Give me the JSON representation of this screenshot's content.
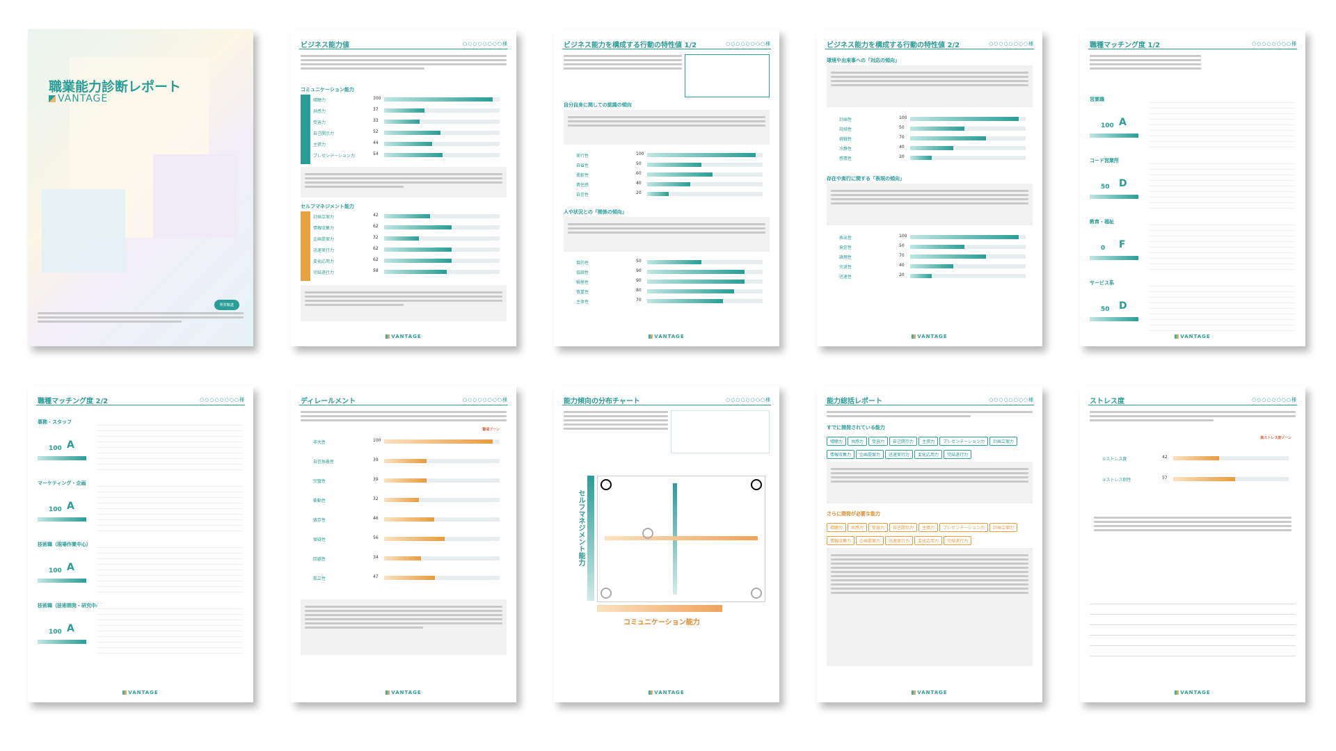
{
  "brand": "VANTAGE",
  "page_number": "○○○○○○○○様",
  "cover": {
    "title": "職業能力診断レポート",
    "badge": "所井転送"
  },
  "pages": {
    "p2": "ビジネス能力値",
    "p3": "ビジネス能力を構成する行動の特性値 1/2",
    "p4": "ビジネス能力を構成する行動の特性値 2/2",
    "p5": "職種マッチング度 1/2",
    "p6": "職種マッチング度 2/2",
    "p7": "ディレールメント",
    "p8": "能力傾向の分布チャート",
    "p9": "能力総括レポート",
    "p10": "ストレス度"
  },
  "p2": {
    "comm_title": "コミュニケーション能力",
    "comm_rows": [
      {
        "label": "傾聴力",
        "value": "100",
        "frac": 1.0
      },
      {
        "label": "共感力",
        "value": "37",
        "frac": 0.37
      },
      {
        "label": "受容力",
        "value": "33",
        "frac": 0.33
      },
      {
        "label": "自己開示力",
        "value": "52",
        "frac": 0.52
      },
      {
        "label": "主張力",
        "value": "44",
        "frac": 0.44
      },
      {
        "label": "プレゼンテーション力",
        "value": "54",
        "frac": 0.54
      }
    ],
    "self_title": "セルフマネジメント能力",
    "self_rows": [
      {
        "label": "計画立案力",
        "value": "42",
        "frac": 0.42
      },
      {
        "label": "情報収集力",
        "value": "62",
        "frac": 0.62
      },
      {
        "label": "企画提案力",
        "value": "32",
        "frac": 0.32
      },
      {
        "label": "迅速実行力",
        "value": "62",
        "frac": 0.62
      },
      {
        "label": "変化応用力",
        "value": "62",
        "frac": 0.62
      },
      {
        "label": "完結遂行力",
        "value": "58",
        "frac": 0.58
      }
    ]
  },
  "p3": {
    "s1": "自分自身に関しての認識の傾向",
    "s1_rows": [
      {
        "label": "実行性",
        "value": "100",
        "frac": 1.0
      },
      {
        "label": "自省性",
        "value": "50",
        "frac": 0.5
      },
      {
        "label": "柔軟性",
        "value": "60",
        "frac": 0.6
      },
      {
        "label": "責任感",
        "value": "40",
        "frac": 0.4
      },
      {
        "label": "自信性",
        "value": "20",
        "frac": 0.2
      }
    ],
    "s2": "人や状況との「関係の傾向」",
    "s2_rows": [
      {
        "label": "目的性",
        "value": "50",
        "frac": 0.5
      },
      {
        "label": "協調性",
        "value": "90",
        "frac": 0.9
      },
      {
        "label": "積極性",
        "value": "90",
        "frac": 0.9
      },
      {
        "label": "慎重性",
        "value": "80",
        "frac": 0.8
      },
      {
        "label": "主体性",
        "value": "70",
        "frac": 0.7
      }
    ]
  },
  "p4": {
    "s1": "環境や出来事への「対応の傾向」",
    "s1_rows": [
      {
        "label": "計画性",
        "value": "100",
        "frac": 1.0
      },
      {
        "label": "持続性",
        "value": "50",
        "frac": 0.5
      },
      {
        "label": "挑戦性",
        "value": "70",
        "frac": 0.7
      },
      {
        "label": "冷静性",
        "value": "40",
        "frac": 0.4
      },
      {
        "label": "感情性",
        "value": "20",
        "frac": 0.2
      }
    ],
    "s2": "存在や実行に関する「表現の傾向」",
    "s2_rows": [
      {
        "label": "表出性",
        "value": "100",
        "frac": 1.0
      },
      {
        "label": "発信性",
        "value": "50",
        "frac": 0.5
      },
      {
        "label": "論理性",
        "value": "70",
        "frac": 0.7
      },
      {
        "label": "完遂性",
        "value": "40",
        "frac": 0.4
      },
      {
        "label": "迅速性",
        "value": "20",
        "frac": 0.2
      }
    ]
  },
  "p5": {
    "jobs": [
      {
        "name": "営業職",
        "grade": "A",
        "score": "100"
      },
      {
        "name": "コード営業所",
        "grade": "D",
        "score": "50"
      },
      {
        "name": "教育・福祉",
        "grade": "F",
        "score": "0"
      },
      {
        "name": "サービス系",
        "grade": "D",
        "score": "50"
      }
    ]
  },
  "p6": {
    "jobs": [
      {
        "name": "事務・スタッフ",
        "grade": "A",
        "score": "100"
      },
      {
        "name": "マーケティング・企画",
        "grade": "A",
        "score": "100"
      },
      {
        "name": "技術職（現場作業中心）",
        "grade": "A",
        "score": "100"
      },
      {
        "name": "技術職（技術開発・研究中心）",
        "grade": "A",
        "score": "100"
      }
    ]
  },
  "p7": {
    "rows": [
      {
        "label": "非大性",
        "value": "100",
        "frac": 1.0
      },
      {
        "label": "自信独善性",
        "value": "39",
        "frac": 0.39
      },
      {
        "label": "完璧性",
        "value": "39",
        "frac": 0.39
      },
      {
        "label": "衝動性",
        "value": "32",
        "frac": 0.32
      },
      {
        "label": "依存性",
        "value": "46",
        "frac": 0.46
      },
      {
        "label": "懐疑性",
        "value": "56",
        "frac": 0.56
      },
      {
        "label": "回避性",
        "value": "34",
        "frac": 0.34
      },
      {
        "label": "孤立性",
        "value": "47",
        "frac": 0.47
      }
    ],
    "zone": "警戒ゾーン"
  },
  "p8": {
    "y_label": "セルフマネジメント能力",
    "x_label": "コミュニケーション能力"
  },
  "p9": {
    "s1": "すでに開発されている能力",
    "s1_tags": [
      "傾聴力",
      "共感力",
      "受容力",
      "自己開示力",
      "主張力",
      "プレゼンテーション力",
      "計画立案力",
      "情報収集力",
      "企画提案力",
      "迅速実行力",
      "変化応用力",
      "完結遂行力"
    ],
    "s2": "さらに開発が必要な能力",
    "s2_tags": [
      "傾聴力",
      "共感力",
      "受容力",
      "自己開示力",
      "主張力",
      "プレゼンテーション力",
      "計画立案力",
      "情報収集力",
      "企画提案力",
      "迅速実行力",
      "変化応用力",
      "完結遂行力"
    ]
  },
  "p10": {
    "rows": [
      {
        "label": "①ストレス度",
        "value": "42",
        "frac": 0.42
      },
      {
        "label": "②ストレス耐性",
        "value": "57",
        "frac": 0.57
      }
    ],
    "zone": "高ストレス度ゾーン"
  }
}
